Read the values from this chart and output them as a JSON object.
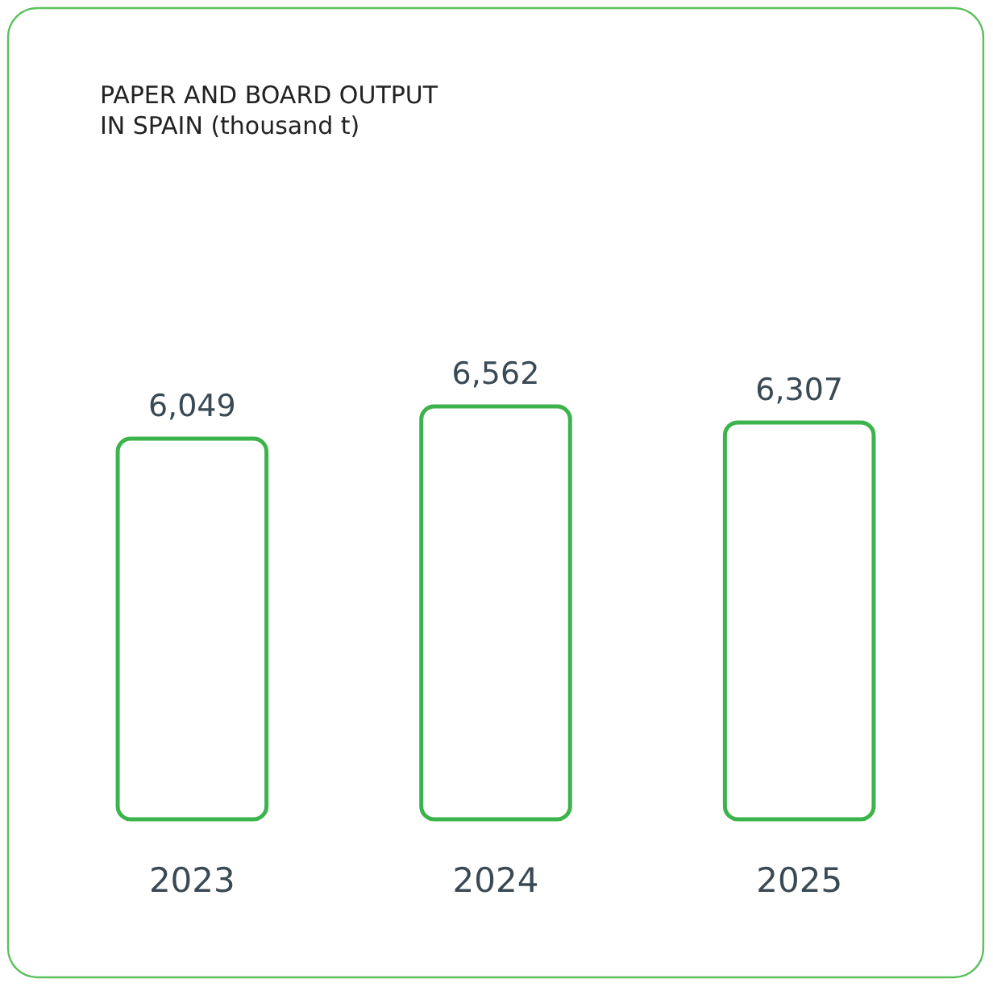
{
  "chart_data": {
    "type": "bar",
    "title": "PAPER AND BOARD OUTPUT\nIN SPAIN (thousand t)",
    "categories": [
      "2023",
      "2024",
      "2025"
    ],
    "values": [
      6049,
      6562,
      6307
    ],
    "color": "#3cb44b",
    "value_labels": [
      "6,049",
      "6,562",
      "6,307"
    ],
    "tick_labels": "x"
  }
}
